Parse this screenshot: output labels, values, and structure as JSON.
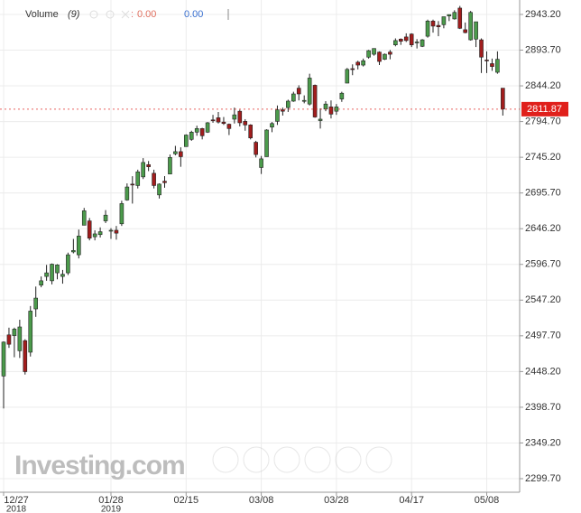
{
  "chart_data": {
    "type": "candlestick",
    "indicator_name": "Volume",
    "indicator_param": "(9)",
    "indicator_value_1": "0.00",
    "indicator_value_2": "0.00",
    "watermark": "Investing.com",
    "up_color": "#4b9a4b",
    "down_color": "#a11d1d",
    "last_price_color": "#e0201b",
    "last_price": 2811.87,
    "categories": [
      "12/27",
      null,
      null,
      null,
      null,
      null,
      null,
      null,
      null,
      null,
      null,
      null,
      null,
      null,
      null,
      null,
      null,
      null,
      null,
      null,
      "01/28",
      null,
      null,
      null,
      null,
      null,
      null,
      null,
      null,
      null,
      null,
      null,
      null,
      null,
      "02/15",
      null,
      null,
      null,
      null,
      null,
      null,
      null,
      null,
      null,
      null,
      null,
      null,
      null,
      "03/08",
      null,
      null,
      null,
      null,
      null,
      null,
      null,
      null,
      null,
      null,
      null,
      null,
      null,
      "03/28",
      null,
      null,
      null,
      null,
      null,
      null,
      null,
      null,
      null,
      null,
      null,
      null,
      null,
      "04/17",
      null,
      null,
      null,
      null,
      null,
      null,
      null,
      null,
      null,
      null,
      null,
      null,
      null,
      "05/08",
      null,
      null,
      null
    ],
    "category_years": [
      "2018",
      null,
      null,
      null,
      null,
      null,
      null,
      null,
      null,
      null,
      null,
      null,
      null,
      null,
      null,
      null,
      null,
      null,
      null,
      null,
      "2019",
      null,
      null,
      null,
      null,
      null,
      null,
      null,
      null,
      null,
      null,
      null,
      null,
      null,
      null,
      null,
      null,
      null,
      null,
      null,
      null,
      null,
      null,
      null,
      null,
      null,
      null,
      null,
      null,
      null,
      null,
      null,
      null,
      null,
      null,
      null,
      null,
      null,
      null,
      null,
      null,
      null,
      null,
      null,
      null,
      null,
      null,
      null,
      null,
      null,
      null,
      null,
      null,
      null,
      null,
      null,
      null,
      null,
      null,
      null,
      null,
      null,
      null,
      null,
      null,
      null,
      null,
      null,
      null,
      null,
      null,
      null,
      null,
      null
    ],
    "open": [
      2442,
      2499,
      2498,
      2477,
      2491,
      2475,
      2535,
      2568,
      2580,
      2574,
      2585,
      2580,
      2585,
      2614,
      2610,
      2651,
      2657,
      2635,
      2638,
      2657,
      2644,
      2644,
      2653,
      2686,
      2708,
      2706,
      2718,
      2735,
      2723,
      2693,
      2712,
      2722,
      2750,
      2753,
      2760,
      2770,
      2780,
      2785,
      2780,
      2797,
      2800,
      2794,
      2791,
      2798,
      2809,
      2795,
      2790,
      2766,
      2731,
      2746,
      2787,
      2795,
      2811,
      2814,
      2823,
      2841,
      2823,
      2819,
      2845,
      2796,
      2812,
      2815,
      2809,
      2826,
      2848,
      2868,
      2877,
      2873,
      2884,
      2888,
      2891,
      2881,
      2891,
      2901,
      2909,
      2912,
      2916,
      2904,
      2899,
      2913,
      2934,
      2928,
      2929,
      2941,
      2937,
      2952,
      2922,
      2908,
      2909,
      2908,
      2880,
      2875,
      2863,
      2841
    ],
    "high": [
      2490,
      2509,
      2509,
      2520,
      2493,
      2539,
      2566,
      2580,
      2596,
      2598,
      2597,
      2589,
      2613,
      2632,
      2645,
      2675,
      2661,
      2644,
      2648,
      2672,
      2647,
      2650,
      2685,
      2709,
      2719,
      2728,
      2744,
      2740,
      2728,
      2709,
      2719,
      2749,
      2761,
      2759,
      2777,
      2782,
      2789,
      2786,
      2794,
      2804,
      2808,
      2801,
      2792,
      2814,
      2811,
      2798,
      2791,
      2768,
      2747,
      2784,
      2794,
      2817,
      2814,
      2825,
      2836,
      2845,
      2831,
      2861,
      2846,
      2813,
      2823,
      2824,
      2819,
      2836,
      2869,
      2874,
      2879,
      2882,
      2894,
      2896,
      2892,
      2889,
      2894,
      2910,
      2910,
      2917,
      2917,
      2909,
      2909,
      2936,
      2936,
      2934,
      2940,
      2943,
      2949,
      2955,
      2932,
      2948,
      2932,
      2910,
      2892,
      2882,
      2892,
      2841
    ],
    "low": [
      2397,
      2481,
      2468,
      2467,
      2444,
      2469,
      2524,
      2565,
      2574,
      2569,
      2576,
      2570,
      2582,
      2612,
      2605,
      2651,
      2630,
      2630,
      2634,
      2654,
      2632,
      2631,
      2650,
      2685,
      2681,
      2702,
      2715,
      2726,
      2702,
      2688,
      2703,
      2722,
      2748,
      2732,
      2760,
      2768,
      2775,
      2770,
      2779,
      2793,
      2792,
      2790,
      2776,
      2792,
      2788,
      2782,
      2770,
      2745,
      2722,
      2746,
      2780,
      2790,
      2803,
      2808,
      2822,
      2824,
      2820,
      2817,
      2800,
      2785,
      2809,
      2799,
      2804,
      2822,
      2848,
      2859,
      2867,
      2871,
      2882,
      2886,
      2873,
      2880,
      2881,
      2899,
      2901,
      2905,
      2898,
      2896,
      2898,
      2911,
      2918,
      2913,
      2924,
      2934,
      2936,
      2923,
      2917,
      2907,
      2898,
      2862,
      2862,
      2865,
      2861,
      2803
    ],
    "close": [
      2489,
      2486,
      2507,
      2510,
      2448,
      2532,
      2550,
      2574,
      2585,
      2597,
      2596,
      2583,
      2610,
      2616,
      2636,
      2671,
      2633,
      2639,
      2642,
      2665,
      2644,
      2640,
      2681,
      2704,
      2707,
      2725,
      2738,
      2732,
      2706,
      2708,
      2710,
      2745,
      2753,
      2746,
      2776,
      2780,
      2785,
      2775,
      2793,
      2796,
      2794,
      2792,
      2785,
      2804,
      2793,
      2790,
      2772,
      2749,
      2743,
      2783,
      2792,
      2811,
      2809,
      2823,
      2833,
      2833,
      2824,
      2855,
      2801,
      2798,
      2819,
      2805,
      2815,
      2834,
      2867,
      2867,
      2873,
      2879,
      2893,
      2896,
      2878,
      2888,
      2888,
      2907,
      2906,
      2907,
      2901,
      2905,
      2908,
      2934,
      2927,
      2926,
      2940,
      2943,
      2946,
      2924,
      2918,
      2946,
      2933,
      2884,
      2879,
      2871,
      2881,
      2812
    ],
    "ylim": [
      2280.9,
      2963.2
    ],
    "yticks": [
      {
        "value": 2299.7,
        "label": "2299.70"
      },
      {
        "value": 2349.2,
        "label": "2349.20"
      },
      {
        "value": 2398.7,
        "label": "2398.70"
      },
      {
        "value": 2448.2,
        "label": "2448.20"
      },
      {
        "value": 2497.7,
        "label": "2497.70"
      },
      {
        "value": 2547.2,
        "label": "2547.20"
      },
      {
        "value": 2596.7,
        "label": "2596.70"
      },
      {
        "value": 2646.2,
        "label": "2646.20"
      },
      {
        "value": 2695.7,
        "label": "2695.70"
      },
      {
        "value": 2745.2,
        "label": "2745.20"
      },
      {
        "value": 2794.7,
        "label": "2794.70"
      },
      {
        "value": 2844.2,
        "label": "2844.20"
      },
      {
        "value": 2893.7,
        "label": "2893.70"
      },
      {
        "value": 2943.2,
        "label": "2943.20"
      }
    ],
    "grid": true
  }
}
